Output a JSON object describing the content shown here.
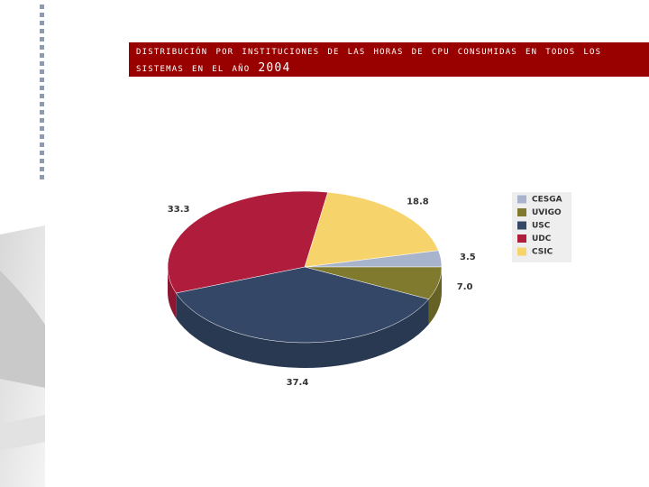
{
  "chart_data": {
    "type": "pie3d",
    "title": "distribución por instituciones de las horas de cpu consumidas en todos los sistemas en el año 2004",
    "categories": [
      "CESGA",
      "UVIGO",
      "USC",
      "UDC",
      "CSIC"
    ],
    "values": [
      3.5,
      7.0,
      37.4,
      33.3,
      18.8
    ],
    "value_labels": [
      "3.5",
      "7.0",
      "37.4",
      "33.3",
      "18.8"
    ],
    "colors": [
      "#a8b4cc",
      "#7f7a2e",
      "#344766",
      "#b01c3c",
      "#f7d36b"
    ],
    "legend": "right"
  }
}
